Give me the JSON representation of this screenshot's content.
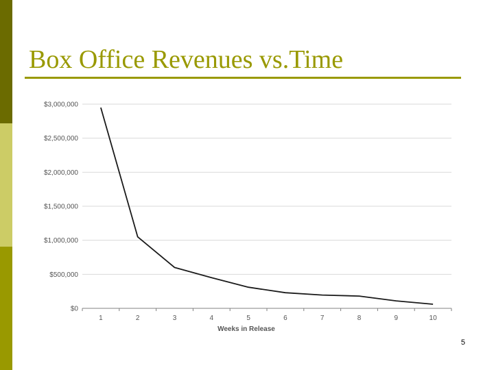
{
  "slide": {
    "title": "Box Office Revenues vs.Time",
    "page_number": "5"
  },
  "colors": {
    "sidebar_dark": "#6b6b00",
    "sidebar_light": "#cccc66",
    "sidebar_mid": "#999900",
    "accent": "#999900",
    "line": "#1a1a1a",
    "gridline": "#d9d9d9",
    "axis": "#808080",
    "tick_text": "#555555"
  },
  "chart_data": {
    "type": "line",
    "title": "",
    "xlabel": "Weeks in Release",
    "ylabel": "",
    "x": [
      1,
      2,
      3,
      4,
      5,
      6,
      7,
      8,
      9,
      10
    ],
    "series": [
      {
        "name": "",
        "values": [
          2950000,
          1050000,
          600000,
          450000,
          310000,
          230000,
          195000,
          180000,
          110000,
          60000
        ]
      }
    ],
    "ylim": [
      0,
      3000000
    ],
    "ytick_labels": [
      "$0",
      "$500,000",
      "$1,000,000",
      "$1,500,000",
      "$2,000,000",
      "$2,500,000",
      "$3,000,000"
    ],
    "xtick_labels": [
      "1",
      "2",
      "3",
      "4",
      "5",
      "6",
      "7",
      "8",
      "9",
      "10"
    ],
    "grid": true,
    "legend": "none"
  }
}
